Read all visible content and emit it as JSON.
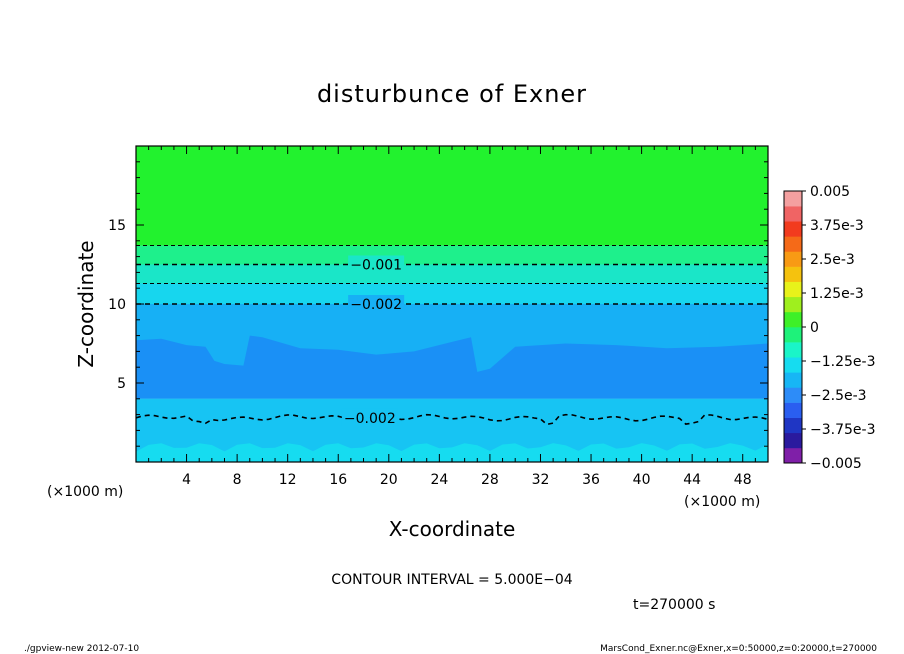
{
  "chart_data": {
    "type": "heatmap",
    "title": "disturbunce of Exner",
    "xlabel": "X-coordinate",
    "ylabel": "Z-coordinate",
    "x_unit": "(×1000 m)",
    "y_unit": "(×1000 m)",
    "xlim": [
      0,
      50
    ],
    "ylim": [
      0,
      20
    ],
    "x_ticks": [
      "4",
      "8",
      "12",
      "16",
      "20",
      "24",
      "28",
      "32",
      "36",
      "40",
      "44",
      "48"
    ],
    "x_tick_values": [
      4,
      8,
      12,
      16,
      20,
      24,
      28,
      32,
      36,
      40,
      44,
      48
    ],
    "y_ticks": [
      "5",
      "10",
      "15"
    ],
    "y_tick_values": [
      5,
      10,
      15
    ],
    "colorbar": {
      "labels": [
        "0.005",
        "3.75e-3",
        "2.5e-3",
        "1.25e-3",
        "0",
        "−1.25e-3",
        "−2.5e-3",
        "−3.75e-3",
        "−0.005"
      ],
      "label_values": [
        0.005,
        0.00375,
        0.0025,
        0.00125,
        0,
        -0.00125,
        -0.0025,
        -0.00375,
        -0.005
      ],
      "range": [
        -0.005,
        0.005
      ],
      "colors": [
        "#7f1fa8",
        "#2a1a9e",
        "#1f36c4",
        "#2a5ef0",
        "#2d8cf8",
        "#17b6f5",
        "#16dcf0",
        "#1af5c8",
        "#1ef27a",
        "#3ef028",
        "#9fef1e",
        "#e8f21a",
        "#f5c20e",
        "#f89a14",
        "#f56a18",
        "#f23b1e",
        "#f06464",
        "#f4a0a0"
      ]
    },
    "field_bands": [
      {
        "name": "band-upper",
        "z_from": 13.7,
        "z_to": 20,
        "value": 0,
        "color": "#22f22e"
      },
      {
        "name": "band-transition-1",
        "z_from": 12.5,
        "z_to": 13.7,
        "value": -0.0003,
        "color": "#1ef08c"
      },
      {
        "name": "band-transition-2",
        "z_from": 11.3,
        "z_to": 12.5,
        "value": -0.0008,
        "color": "#1ae6c8"
      },
      {
        "name": "band-transition-3",
        "z_from": 10,
        "z_to": 11.3,
        "value": -0.0013,
        "color": "#17d6ee"
      },
      {
        "name": "band-mid",
        "z_from": 4,
        "z_to": 10,
        "value": -0.002,
        "color": "#17b0f5"
      },
      {
        "name": "band-core",
        "z_from": 4,
        "z_to": 7.7,
        "value": -0.0028,
        "color": "#1a90f6"
      },
      {
        "name": "band-lower",
        "z_from": 0,
        "z_to": 4,
        "value": -0.0018,
        "color": "#17c4f3"
      },
      {
        "name": "band-surface",
        "z_from": 0,
        "z_to": 1.2,
        "value": -0.0012,
        "color": "#16dcf0"
      }
    ],
    "contours": [
      {
        "name": "contour-upper",
        "z": 13.7,
        "label": ""
      },
      {
        "name": "contour-001",
        "z": 12.5,
        "label": "−0.001"
      },
      {
        "name": "contour-0015",
        "z": 11.3,
        "label": ""
      },
      {
        "name": "contour-002-upper",
        "z": 10,
        "label": "−0.002"
      },
      {
        "name": "contour-002-lower",
        "z": 2.8,
        "label": "−0.002"
      }
    ]
  },
  "annotations": {
    "contour_interval": "CONTOUR INTERVAL = 5.000E−04",
    "time": "t=270000 s",
    "footer_left": "./gpview-new   2012-07-10",
    "footer_right": "MarsCond_Exner.nc@Exner,x=0:50000,z=0:20000,t=270000"
  },
  "colors": {
    "frame": "#000000",
    "background": "#ffffff"
  }
}
